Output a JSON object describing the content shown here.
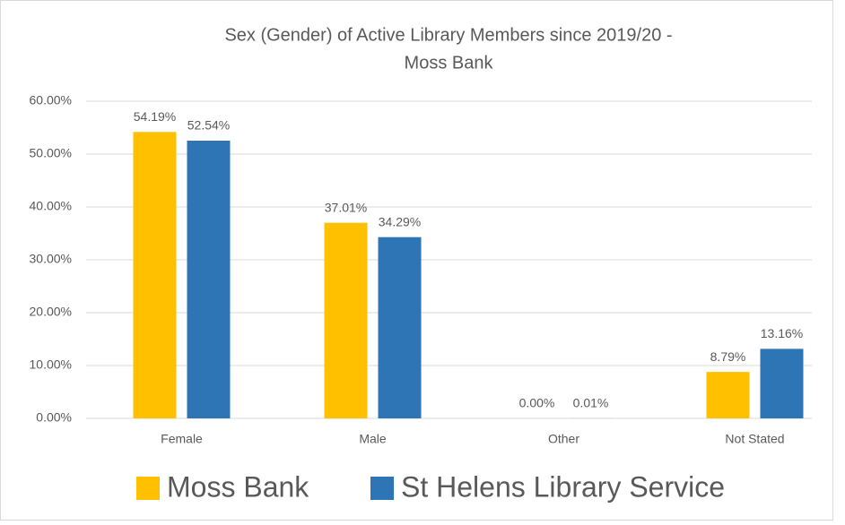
{
  "chart_data": {
    "type": "bar",
    "title": [
      "Sex (Gender) of Active Library Members since 2019/20 -",
      "Moss Bank"
    ],
    "categories": [
      "Female",
      "Male",
      "Other",
      "Not Stated"
    ],
    "series": [
      {
        "name": "Moss Bank",
        "color": "#ffc000",
        "values": [
          54.19,
          37.01,
          0,
          8.79
        ],
        "value_labels": [
          "54.19%",
          "37.01%",
          "0.00%",
          "8.79%"
        ]
      },
      {
        "name": "St Helens Library Service",
        "color": "#2e75b6",
        "values": [
          52.54,
          34.29,
          0.01,
          13.16
        ],
        "value_labels": [
          "52.54%",
          "34.29%",
          "0.01%",
          "13.16%"
        ]
      }
    ],
    "ylim": [
      0,
      60
    ],
    "yticks": [
      {
        "value": 0,
        "label": "0.00%"
      },
      {
        "value": 10,
        "label": "10.00%"
      },
      {
        "value": 20,
        "label": "20.00%"
      },
      {
        "value": 30,
        "label": "30.00%"
      },
      {
        "value": 40,
        "label": "40.00%"
      },
      {
        "value": 50,
        "label": "50.00%"
      },
      {
        "value": 60,
        "label": "60.00%"
      }
    ],
    "grid": true,
    "legend": "bottom"
  }
}
